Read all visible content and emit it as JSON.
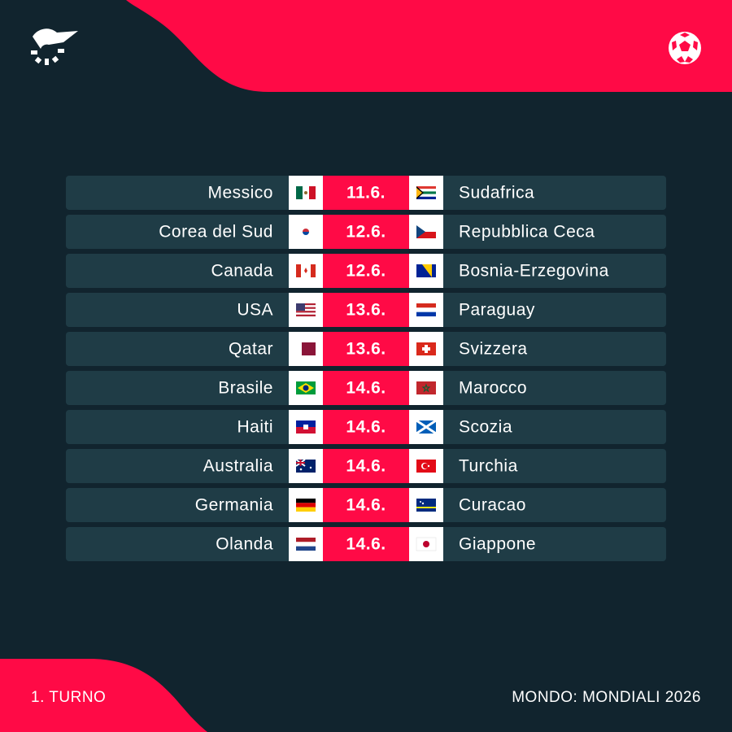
{
  "matches": [
    {
      "home": "Messico",
      "date": "11.6.",
      "away": "Sudafrica"
    },
    {
      "home": "Corea del Sud",
      "date": "12.6.",
      "away": "Repubblica Ceca"
    },
    {
      "home": "Canada",
      "date": "12.6.",
      "away": "Bosnia-Erzegovina"
    },
    {
      "home": "USA",
      "date": "13.6.",
      "away": "Paraguay"
    },
    {
      "home": "Qatar",
      "date": "13.6.",
      "away": "Svizzera"
    },
    {
      "home": "Brasile",
      "date": "14.6.",
      "away": "Marocco"
    },
    {
      "home": "Haiti",
      "date": "14.6.",
      "away": "Scozia"
    },
    {
      "home": "Australia",
      "date": "14.6.",
      "away": "Turchia"
    },
    {
      "home": "Germania",
      "date": "14.6.",
      "away": "Curacao"
    },
    {
      "home": "Olanda",
      "date": "14.6.",
      "away": "Giappone"
    }
  ],
  "footer": {
    "round": "1. TURNO",
    "competition": "MONDO: MONDIALI 2026"
  }
}
